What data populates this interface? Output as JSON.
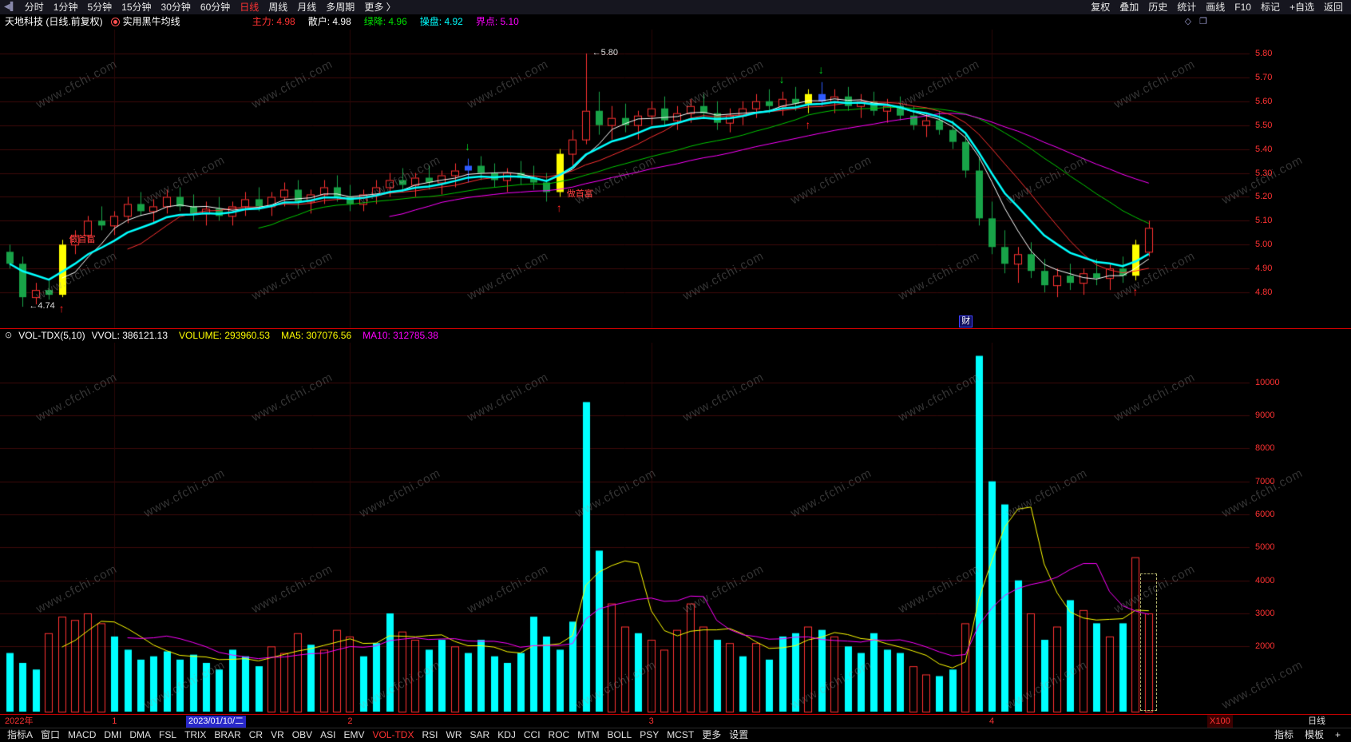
{
  "window": {
    "watermark": "www.cfchi.com"
  },
  "colors": {
    "up": "#ff3232",
    "down": "#18a348",
    "signal_yellow": "#ffff00",
    "signal_blue": "#2e5bff",
    "volume_cyan": "#00ffff",
    "grid": "#3c0a0a",
    "grid_v": "#2a0707",
    "axis_text": "#ff3232",
    "buy_arrow": "#ff2020",
    "sell_arrow": "#00d020",
    "signal_text": "#ff4040",
    "hl_label": "#dddddd"
  },
  "top_menu": {
    "left_icon": "◀▌",
    "items": [
      "分时",
      "1分钟",
      "5分钟",
      "15分钟",
      "30分钟",
      "60分钟",
      "日线",
      "周线",
      "月线",
      "多周期",
      "更多 〉"
    ],
    "active": "日线",
    "right_items": [
      "复权",
      "叠加",
      "历史",
      "统计",
      "画线",
      "F10",
      "标记",
      "+自选",
      "返回"
    ]
  },
  "info_bar": {
    "stock_title": "天地科技 (日线.前复权)",
    "indicator_name": "实用黑牛均线",
    "fields": [
      {
        "label": "主力:",
        "value": "4.98",
        "color": "#ff3232"
      },
      {
        "label": "散户:",
        "value": "4.98",
        "color": "#ffffff"
      },
      {
        "label": "绿降:",
        "value": "4.96",
        "color": "#00e000"
      },
      {
        "label": "操盘:",
        "value": "4.92",
        "color": "#00ffff"
      },
      {
        "label": "界点:",
        "value": "5.10",
        "color": "#ff00ff"
      }
    ],
    "right_icons": [
      "◇",
      "❐"
    ]
  },
  "volume_header": {
    "circle_icon": "⊙",
    "indicator": "VOL-TDX(5,10)",
    "fields": [
      {
        "label": "VVOL:",
        "value": "386121.13",
        "color": "#ffffff"
      },
      {
        "label": "VOLUME:",
        "value": "293960.53",
        "color": "#ffff00"
      },
      {
        "label": "MA5:",
        "value": "307076.56",
        "color": "#ffff00"
      },
      {
        "label": "MA10:",
        "value": "312785.38",
        "color": "#ff00ff"
      }
    ]
  },
  "x_axis": {
    "left_label": "2022年",
    "month_ticks": [
      {
        "label": "1",
        "bar": 8
      },
      {
        "label": "2",
        "bar": 26
      },
      {
        "label": "3",
        "bar": 49
      },
      {
        "label": "4",
        "bar": 75
      }
    ],
    "date_box": {
      "text": "2023/01/10/二",
      "x": 233
    },
    "scale_label": "X100",
    "period_label": "日线"
  },
  "bottom_bar": {
    "tabs": [
      "指标A",
      "窗口",
      "MACD",
      "DMI",
      "DMA",
      "FSL",
      "TRIX",
      "BRAR",
      "CR",
      "VR",
      "OBV",
      "ASI",
      "EMV",
      "VOL-TDX",
      "RSI",
      "WR",
      "SAR",
      "KDJ",
      "CCI",
      "ROC",
      "MTM",
      "BOLL",
      "PSY",
      "MCST",
      "更多",
      "设置"
    ],
    "active": "VOL-TDX",
    "right_items": [
      "指标",
      "模板"
    ],
    "plus_icon": "+"
  },
  "chart_data": [
    {
      "type": "candlestick",
      "title": "天地科技 日线 前复权",
      "ylim": [
        4.65,
        5.9
      ],
      "yticks": [
        "5.80",
        "5.70",
        "5.60",
        "5.50",
        "5.40",
        "5.30",
        "5.20",
        "5.10",
        "5.00",
        "4.90",
        "4.80"
      ],
      "candles": [
        [
          4.97,
          5.0,
          4.9,
          4.92
        ],
        [
          4.92,
          4.95,
          4.74,
          4.78
        ],
        [
          4.78,
          4.84,
          4.75,
          4.81
        ],
        [
          4.81,
          4.85,
          4.77,
          4.79
        ],
        [
          4.79,
          5.02,
          4.78,
          5.0
        ],
        [
          5.0,
          5.06,
          4.96,
          5.04
        ],
        [
          5.04,
          5.12,
          5.01,
          5.1
        ],
        [
          5.1,
          5.16,
          5.06,
          5.08
        ],
        [
          5.08,
          5.14,
          5.04,
          5.12
        ],
        [
          5.12,
          5.2,
          5.09,
          5.17
        ],
        [
          5.17,
          5.22,
          5.12,
          5.14
        ],
        [
          5.14,
          5.19,
          5.09,
          5.16
        ],
        [
          5.16,
          5.23,
          5.13,
          5.2
        ],
        [
          5.2,
          5.24,
          5.14,
          5.16
        ],
        [
          5.16,
          5.21,
          5.1,
          5.13
        ],
        [
          5.13,
          5.18,
          5.08,
          5.15
        ],
        [
          5.15,
          5.2,
          5.1,
          5.12
        ],
        [
          5.12,
          5.18,
          5.08,
          5.16
        ],
        [
          5.16,
          5.22,
          5.12,
          5.19
        ],
        [
          5.19,
          5.24,
          5.14,
          5.16
        ],
        [
          5.16,
          5.22,
          5.12,
          5.2
        ],
        [
          5.2,
          5.26,
          5.16,
          5.23
        ],
        [
          5.23,
          5.27,
          5.15,
          5.18
        ],
        [
          5.18,
          5.23,
          5.13,
          5.21
        ],
        [
          5.21,
          5.27,
          5.17,
          5.24
        ],
        [
          5.24,
          5.29,
          5.18,
          5.2
        ],
        [
          5.2,
          5.25,
          5.14,
          5.17
        ],
        [
          5.17,
          5.23,
          5.14,
          5.21
        ],
        [
          5.21,
          5.27,
          5.17,
          5.24
        ],
        [
          5.24,
          5.3,
          5.2,
          5.27
        ],
        [
          5.27,
          5.32,
          5.22,
          5.25
        ],
        [
          5.25,
          5.3,
          5.2,
          5.28
        ],
        [
          5.28,
          5.33,
          5.23,
          5.26
        ],
        [
          5.26,
          5.31,
          5.21,
          5.29
        ],
        [
          5.29,
          5.34,
          5.24,
          5.31
        ],
        [
          5.31,
          5.36,
          5.26,
          5.33
        ],
        [
          5.33,
          5.37,
          5.27,
          5.3
        ],
        [
          5.3,
          5.34,
          5.24,
          5.27
        ],
        [
          5.27,
          5.32,
          5.22,
          5.3
        ],
        [
          5.3,
          5.35,
          5.25,
          5.28
        ],
        [
          5.28,
          5.33,
          5.23,
          5.26
        ],
        [
          5.26,
          5.3,
          5.18,
          5.22
        ],
        [
          5.22,
          5.4,
          5.2,
          5.38
        ],
        [
          5.38,
          5.48,
          5.33,
          5.44
        ],
        [
          5.44,
          5.8,
          5.42,
          5.56
        ],
        [
          5.56,
          5.64,
          5.46,
          5.5
        ],
        [
          5.5,
          5.58,
          5.44,
          5.53
        ],
        [
          5.53,
          5.59,
          5.47,
          5.5
        ],
        [
          5.5,
          5.56,
          5.44,
          5.54
        ],
        [
          5.54,
          5.6,
          5.5,
          5.57
        ],
        [
          5.57,
          5.62,
          5.5,
          5.52
        ],
        [
          5.52,
          5.58,
          5.48,
          5.55
        ],
        [
          5.55,
          5.61,
          5.51,
          5.58
        ],
        [
          5.58,
          5.63,
          5.53,
          5.55
        ],
        [
          5.55,
          5.6,
          5.48,
          5.51
        ],
        [
          5.51,
          5.57,
          5.47,
          5.54
        ],
        [
          5.54,
          5.6,
          5.5,
          5.57
        ],
        [
          5.57,
          5.63,
          5.53,
          5.6
        ],
        [
          5.6,
          5.65,
          5.55,
          5.58
        ],
        [
          5.58,
          5.64,
          5.54,
          5.61
        ],
        [
          5.61,
          5.66,
          5.56,
          5.59
        ],
        [
          5.59,
          5.65,
          5.55,
          5.63
        ],
        [
          5.63,
          5.68,
          5.58,
          5.6
        ],
        [
          5.6,
          5.65,
          5.55,
          5.62
        ],
        [
          5.62,
          5.66,
          5.56,
          5.58
        ],
        [
          5.58,
          5.63,
          5.53,
          5.6
        ],
        [
          5.6,
          5.64,
          5.54,
          5.56
        ],
        [
          5.56,
          5.61,
          5.51,
          5.58
        ],
        [
          5.58,
          5.62,
          5.52,
          5.54
        ],
        [
          5.54,
          5.58,
          5.48,
          5.5
        ],
        [
          5.5,
          5.55,
          5.45,
          5.52
        ],
        [
          5.52,
          5.56,
          5.46,
          5.48
        ],
        [
          5.48,
          5.52,
          5.4,
          5.43
        ],
        [
          5.43,
          5.46,
          5.28,
          5.31
        ],
        [
          5.31,
          5.36,
          5.08,
          5.11
        ],
        [
          5.11,
          5.18,
          4.96,
          4.99
        ],
        [
          4.99,
          5.06,
          4.88,
          4.92
        ],
        [
          4.92,
          4.99,
          4.84,
          4.96
        ],
        [
          4.96,
          5.01,
          4.86,
          4.89
        ],
        [
          4.89,
          4.94,
          4.8,
          4.83
        ],
        [
          4.83,
          4.9,
          4.78,
          4.87
        ],
        [
          4.87,
          4.92,
          4.81,
          4.84
        ],
        [
          4.84,
          4.9,
          4.79,
          4.88
        ],
        [
          4.88,
          4.94,
          4.83,
          4.86
        ],
        [
          4.86,
          4.92,
          4.81,
          4.9
        ],
        [
          4.9,
          4.95,
          4.84,
          4.87
        ],
        [
          4.87,
          5.02,
          4.85,
          5.0
        ],
        [
          4.97,
          5.1,
          4.95,
          5.07
        ]
      ],
      "special_candles": {
        "4": "yellow",
        "35": "blue",
        "42": "yellow",
        "61": "yellow",
        "62": "blue",
        "86": "yellow"
      },
      "ma_lines": [
        {
          "period": 20,
          "color": "#00c800",
          "width": 1,
          "type": "sma"
        },
        {
          "period": 30,
          "color": "#ff00ff",
          "width": 1,
          "type": "sma"
        },
        {
          "period": 10,
          "color": "#ff3232",
          "width": 1,
          "type": "sma"
        },
        {
          "period": 5,
          "color": "#ffffff",
          "width": 1,
          "type": "sma"
        },
        {
          "period": 8,
          "color": "#00ffff",
          "width": 2.5,
          "type": "ema"
        }
      ],
      "annotations": {
        "high_label": {
          "bar": 44,
          "price": 5.8,
          "text": "←5.80"
        },
        "low_label": {
          "bar": 1,
          "price": 4.74,
          "text": "←4.74"
        },
        "buy_arrow_bars": [
          4,
          42,
          61,
          86
        ],
        "sell_arrow_bars": [
          35,
          59,
          62
        ],
        "signal_labels": [
          {
            "bar": 4,
            "price": 5.02,
            "text": "做首富"
          },
          {
            "bar": 42,
            "price": 5.21,
            "text": "做首富"
          }
        ],
        "corner_label": {
          "bar": 73,
          "text": "财"
        }
      }
    },
    {
      "type": "bar",
      "title": "VOL-TDX(5,10)",
      "ylim": [
        0,
        11200
      ],
      "yticks": [
        "10000",
        "9000",
        "8000",
        "7000",
        "6000",
        "5000",
        "4000",
        "3000",
        "2000"
      ],
      "values": [
        1800,
        1500,
        1300,
        2400,
        2900,
        2800,
        3000,
        2700,
        2300,
        1900,
        1600,
        1700,
        1850,
        1600,
        1750,
        1500,
        1300,
        1900,
        1700,
        1400,
        2000,
        1800,
        2400,
        2050,
        1900,
        2500,
        2300,
        1700,
        2100,
        3000,
        2450,
        2200,
        1900,
        2200,
        2000,
        1800,
        2200,
        1700,
        1500,
        1800,
        2900,
        2300,
        1900,
        2750,
        9400,
        4900,
        3300,
        2600,
        2400,
        2200,
        1900,
        2500,
        3300,
        2600,
        2200,
        2100,
        1700,
        2100,
        1600,
        2300,
        2400,
        2600,
        2500,
        2300,
        2000,
        1800,
        2400,
        1900,
        1800,
        1400,
        1150,
        1100,
        1300,
        2700,
        10800,
        7000,
        6300,
        4000,
        3000,
        2200,
        2600,
        3400,
        3100,
        2700,
        2300,
        2700,
        4700,
        3000
      ],
      "bar_colors": [
        "c",
        "c",
        "c",
        "r",
        "r",
        "r",
        "r",
        "r",
        "c",
        "c",
        "c",
        "c",
        "c",
        "c",
        "c",
        "c",
        "c",
        "c",
        "c",
        "c",
        "r",
        "r",
        "r",
        "c",
        "r",
        "r",
        "r",
        "c",
        "c",
        "c",
        "r",
        "r",
        "c",
        "c",
        "r",
        "c",
        "c",
        "c",
        "c",
        "c",
        "c",
        "c",
        "c",
        "c",
        "c",
        "c",
        "r",
        "r",
        "c",
        "r",
        "r",
        "r",
        "r",
        "r",
        "c",
        "r",
        "c",
        "r",
        "c",
        "c",
        "c",
        "r",
        "c",
        "r",
        "c",
        "c",
        "c",
        "c",
        "c",
        "r",
        "r",
        "c",
        "c",
        "r",
        "c",
        "c",
        "c",
        "c",
        "r",
        "c",
        "r",
        "c",
        "r",
        "c",
        "r",
        "c",
        "r",
        "r"
      ],
      "ma_lines": [
        {
          "period": 5,
          "color": "#ffff00",
          "width": 1,
          "type": "sma"
        },
        {
          "period": 10,
          "color": "#ff00ff",
          "width": 1,
          "type": "sma"
        }
      ],
      "selection_bar": 87,
      "unit_label": "X100"
    }
  ]
}
